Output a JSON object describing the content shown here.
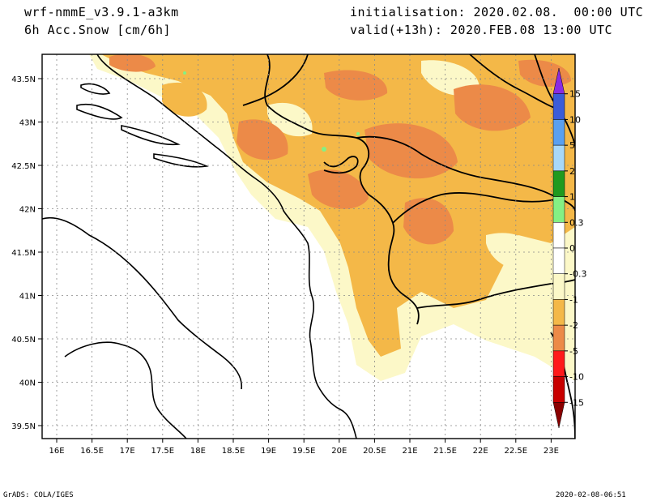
{
  "header": {
    "model": "wrf-nmmE_v3.9.1-a3km",
    "field": "6h Acc.Snow [cm/6h]",
    "init": "initialisation: 2020.02.08.  00:00 UTC",
    "valid": "valid(+13h): 2020.FEB.08 13:00 UTC"
  },
  "footer": {
    "credit": "GrADS: COLA/IGES",
    "timestamp": "2020-02-08-06:51"
  },
  "map": {
    "lon_ticks": [
      "16E",
      "16.5E",
      "17E",
      "17.5E",
      "18E",
      "18.5E",
      "19E",
      "19.5E",
      "20E",
      "20.5E",
      "21E",
      "21.5E",
      "22E",
      "22.5E",
      "23E"
    ],
    "lat_ticks": [
      "43.5N",
      "43N",
      "42.5N",
      "42N",
      "41.5N",
      "41N",
      "40.5N",
      "40N",
      "39.5N"
    ]
  },
  "legend": {
    "colors": [
      "#8a2be2",
      "#3a5cd8",
      "#5aa0f0",
      "#a8d8f8",
      "#1f9a1f",
      "#84f084",
      "#ffffff",
      "#ffffff",
      "#fcf8c8",
      "#f4b848",
      "#ec8a48",
      "#ff1a1a",
      "#c80000",
      "#8a0000"
    ],
    "labels": [
      "15",
      "10",
      "5",
      "2",
      "1",
      "0.3",
      "0",
      "-0.3",
      "-1",
      "-2",
      "-5",
      "-10",
      "-15"
    ]
  },
  "colors": {
    "light": "#fcf8c8",
    "medium": "#f4b848",
    "heavy": "#ec8a48",
    "green": "#84f084"
  }
}
